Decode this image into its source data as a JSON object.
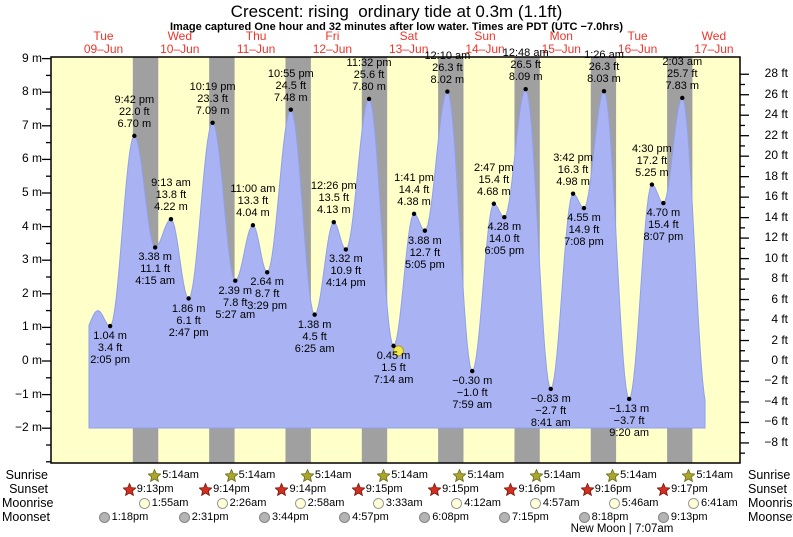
{
  "title": "Crescent: rising  ordinary tide at 0.3m (1.1ft)",
  "subtitle": "Image captured One hour and 32 minutes after low water. Times are PDT (UTC −7.0hrs)",
  "colors": {
    "plot_background": "#ffffc9",
    "night_band": "#a0a0a0",
    "tide_fill": "#a9b3f3",
    "tide_fill_edge": "#8fa0ea",
    "day_label_red": "#ee352b",
    "annotation_text": "#000000",
    "current_marker_yellow": "#f2e94e",
    "sunrise_star": "#aaa52c",
    "sunset_star": "#d03020",
    "moonrise_circle": "#ffffd6",
    "moonset_circle": "#b4b4b4"
  },
  "chart_data": {
    "type": "area",
    "title": "Crescent: rising  ordinary tide at 0.3m (1.1ft)",
    "x_days": [
      {
        "name": "Tue",
        "date": "09–Jun"
      },
      {
        "name": "Wed",
        "date": "10–Jun"
      },
      {
        "name": "Thu",
        "date": "11–Jun"
      },
      {
        "name": "Fri",
        "date": "12–Jun"
      },
      {
        "name": "Sat",
        "date": "13–Jun"
      },
      {
        "name": "Sun",
        "date": "14–Jun"
      },
      {
        "name": "Mon",
        "date": "15–Jun"
      },
      {
        "name": "Tue",
        "date": "16–Jun"
      },
      {
        "name": "Wed",
        "date": "17–Jun"
      }
    ],
    "y_axis_left": {
      "unit": "m",
      "label_min": -2,
      "label_max": 9,
      "label_step": 1,
      "minor_step": 0.5
    },
    "y_axis_right": {
      "unit": "ft",
      "label_min": -8,
      "label_max": 28,
      "label_step": 2,
      "minor_step": 1
    },
    "grid": false,
    "extremes": [
      {
        "day": 0,
        "type": "low",
        "time": "2:05 pm",
        "height_m": 1.04,
        "m": "1.04",
        "ft": "3.4"
      },
      {
        "day": 0,
        "type": "high",
        "time": "9:42 pm",
        "height_m": 6.7,
        "m": "6.70",
        "ft": "22.0"
      },
      {
        "day": 1,
        "type": "low",
        "time": "4:15 am",
        "height_m": 3.38,
        "m": "3.38",
        "ft": "11.1"
      },
      {
        "day": 1,
        "type": "high",
        "time": "9:13 am",
        "height_m": 4.22,
        "m": "4.22",
        "ft": "13.8"
      },
      {
        "day": 1,
        "type": "low",
        "time": "2:47 pm",
        "height_m": 1.86,
        "m": "1.86",
        "ft": "6.1"
      },
      {
        "day": 1,
        "type": "high",
        "time": "10:19 pm",
        "height_m": 7.09,
        "m": "7.09",
        "ft": "23.3"
      },
      {
        "day": 2,
        "type": "low",
        "time": "5:27 am",
        "height_m": 2.39,
        "m": "2.39",
        "ft": "7.8"
      },
      {
        "day": 2,
        "type": "high",
        "time": "11:00 am",
        "height_m": 4.04,
        "m": "4.04",
        "ft": "13.3"
      },
      {
        "day": 2,
        "type": "low",
        "time": "3:29 pm",
        "height_m": 2.64,
        "m": "2.64",
        "ft": "8.7"
      },
      {
        "day": 2,
        "type": "high",
        "time": "10:55 pm",
        "height_m": 7.48,
        "m": "7.48",
        "ft": "24.5"
      },
      {
        "day": 3,
        "type": "low",
        "time": "6:25 am",
        "height_m": 1.38,
        "m": "1.38",
        "ft": "4.5"
      },
      {
        "day": 3,
        "type": "high",
        "time": "12:26 pm",
        "height_m": 4.13,
        "m": "4.13",
        "ft": "13.5"
      },
      {
        "day": 3,
        "type": "low",
        "time": "4:14 pm",
        "height_m": 3.32,
        "m": "3.32",
        "ft": "10.9"
      },
      {
        "day": 3,
        "type": "high",
        "time": "11:32 pm",
        "height_m": 7.8,
        "m": "7.80",
        "ft": "25.6"
      },
      {
        "day": 4,
        "type": "low",
        "time": "7:14 am",
        "height_m": 0.45,
        "m": "0.45",
        "ft": "1.5"
      },
      {
        "day": 4,
        "type": "high",
        "time": "1:41 pm",
        "height_m": 4.38,
        "m": "4.38",
        "ft": "14.4"
      },
      {
        "day": 4,
        "type": "low",
        "time": "5:05 pm",
        "height_m": 3.88,
        "m": "3.88",
        "ft": "12.7"
      },
      {
        "day": 5,
        "type": "high",
        "time": "12:10 am",
        "height_m": 8.02,
        "m": "8.02",
        "ft": "26.3"
      },
      {
        "day": 5,
        "type": "low",
        "time": "7:59 am",
        "height_m": -0.3,
        "m": "−0.30",
        "ft": "−1.0"
      },
      {
        "day": 5,
        "type": "high",
        "time": "2:47 pm",
        "height_m": 4.68,
        "m": "4.68",
        "ft": "15.4"
      },
      {
        "day": 5,
        "type": "low",
        "time": "6:05 pm",
        "height_m": 4.28,
        "m": "4.28",
        "ft": "14.0"
      },
      {
        "day": 6,
        "type": "high",
        "time": "12:48 am",
        "height_m": 8.09,
        "m": "8.09",
        "ft": "26.5"
      },
      {
        "day": 6,
        "type": "low",
        "time": "8:41 am",
        "height_m": -0.83,
        "m": "−0.83",
        "ft": "−2.7"
      },
      {
        "day": 6,
        "type": "high",
        "time": "3:42 pm",
        "height_m": 4.98,
        "m": "4.98",
        "ft": "16.3"
      },
      {
        "day": 6,
        "type": "low",
        "time": "7:08 pm",
        "height_m": 4.55,
        "m": "4.55",
        "ft": "14.9"
      },
      {
        "day": 7,
        "type": "high",
        "time": "1:26 am",
        "height_m": 8.03,
        "m": "8.03",
        "ft": "26.3"
      },
      {
        "day": 7,
        "type": "low",
        "time": "9:20 am",
        "height_m": -1.13,
        "m": "−1.13",
        "ft": "−3.7"
      },
      {
        "day": 7,
        "type": "high",
        "time": "4:30 pm",
        "height_m": 5.25,
        "m": "5.25",
        "ft": "17.2"
      },
      {
        "day": 7,
        "type": "low",
        "time": "8:07 pm",
        "height_m": 4.7,
        "m": "4.70",
        "ft": "15.4"
      },
      {
        "day": 8,
        "type": "high",
        "time": "2:03 am",
        "height_m": 7.83,
        "m": "7.83",
        "ft": "25.7"
      }
    ],
    "current_marker": {
      "day": 4,
      "time": "8:46 am",
      "height_m": 0.3
    }
  },
  "astro": {
    "rows": [
      {
        "id": "sunrise",
        "label": "Sunrise",
        "icon": "sunrise-star-icon",
        "events": [
          {
            "day": 1,
            "time": "5:14am"
          },
          {
            "day": 2,
            "time": "5:14am"
          },
          {
            "day": 3,
            "time": "5:14am"
          },
          {
            "day": 4,
            "time": "5:14am"
          },
          {
            "day": 5,
            "time": "5:14am"
          },
          {
            "day": 6,
            "time": "5:14am"
          },
          {
            "day": 7,
            "time": "5:14am"
          },
          {
            "day": 8,
            "time": "5:14am"
          }
        ]
      },
      {
        "id": "sunset",
        "label": "Sunset",
        "icon": "sunset-star-icon",
        "events": [
          {
            "day": 0,
            "time": "9:13pm"
          },
          {
            "day": 1,
            "time": "9:14pm"
          },
          {
            "day": 2,
            "time": "9:14pm"
          },
          {
            "day": 3,
            "time": "9:15pm"
          },
          {
            "day": 4,
            "time": "9:15pm"
          },
          {
            "day": 5,
            "time": "9:16pm"
          },
          {
            "day": 6,
            "time": "9:16pm"
          },
          {
            "day": 7,
            "time": "9:17pm"
          }
        ]
      },
      {
        "id": "moonrise",
        "label": "Moonrise",
        "icon": "moonrise-circle-icon",
        "events": [
          {
            "day": 1,
            "time": "1:55am"
          },
          {
            "day": 2,
            "time": "2:26am"
          },
          {
            "day": 3,
            "time": "2:58am"
          },
          {
            "day": 4,
            "time": "3:33am"
          },
          {
            "day": 5,
            "time": "4:12am"
          },
          {
            "day": 6,
            "time": "4:57am"
          },
          {
            "day": 7,
            "time": "5:46am"
          },
          {
            "day": 8,
            "time": "6:41am"
          }
        ]
      },
      {
        "id": "moonset",
        "label": "Moonset",
        "icon": "moonset-circle-icon",
        "events": [
          {
            "day": 0,
            "time": "1:18pm"
          },
          {
            "day": 1,
            "time": "2:31pm"
          },
          {
            "day": 2,
            "time": "3:44pm"
          },
          {
            "day": 3,
            "time": "4:57pm"
          },
          {
            "day": 4,
            "time": "6:08pm"
          },
          {
            "day": 5,
            "time": "7:15pm"
          },
          {
            "day": 6,
            "time": "8:18pm"
          },
          {
            "day": 7,
            "time": "9:13pm"
          }
        ]
      }
    ],
    "new_moon_note": "New Moon | 7:07am"
  }
}
